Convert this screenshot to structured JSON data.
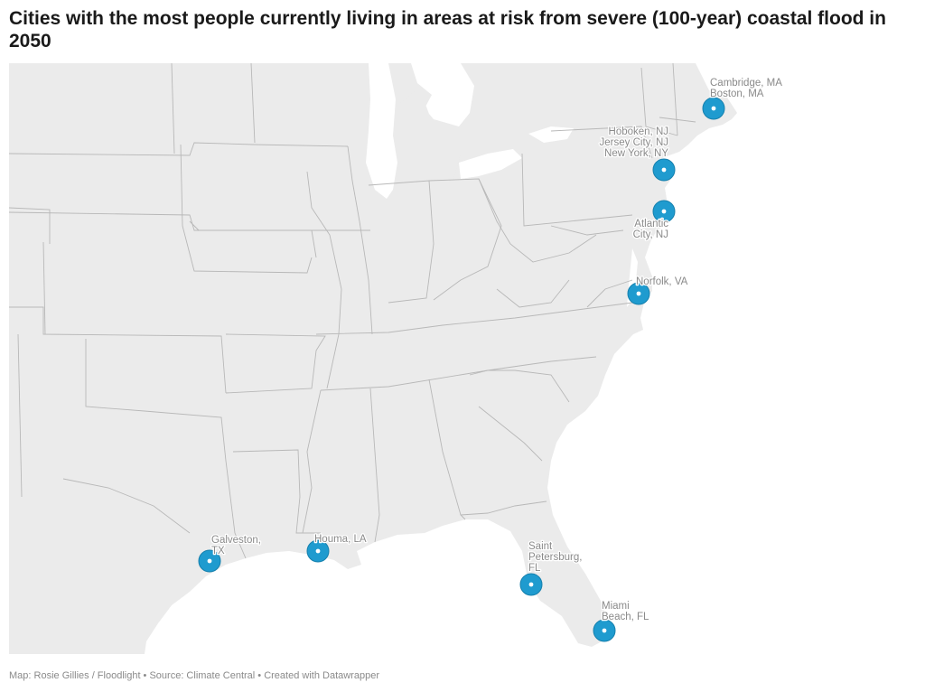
{
  "title": "Cities with the most people currently living in areas at risk from severe (100-year) coastal flood in 2050",
  "footer": "Map: Rosie Gillies / Floodlight • Source: Climate Central • Created with Datawrapper",
  "colors": {
    "marker": "#1f9bcf",
    "land": "#ebebeb",
    "state_border": "#b8b8b8",
    "label": "#8a8a8a"
  },
  "cities": [
    {
      "id": "cambridge-boston",
      "label_lines": [
        "Cambridge, MA",
        "Boston, MA"
      ]
    },
    {
      "id": "hoboken-jersey-newyork",
      "label_lines": [
        "Hoboken, NJ",
        "Jersey City, NJ",
        "New York, NY"
      ]
    },
    {
      "id": "atlantic-city",
      "label_lines": [
        "Atlantic",
        "City, NJ"
      ]
    },
    {
      "id": "norfolk",
      "label_lines": [
        "Norfolk, VA"
      ]
    },
    {
      "id": "galveston",
      "label_lines": [
        "Galveston,",
        "TX"
      ]
    },
    {
      "id": "houma",
      "label_lines": [
        "Houma, LA"
      ]
    },
    {
      "id": "saint-petersburg",
      "label_lines": [
        "Saint",
        "Petersburg,",
        "FL"
      ]
    },
    {
      "id": "miami-beach",
      "label_lines": [
        "Miami",
        "Beach, FL"
      ]
    }
  ]
}
